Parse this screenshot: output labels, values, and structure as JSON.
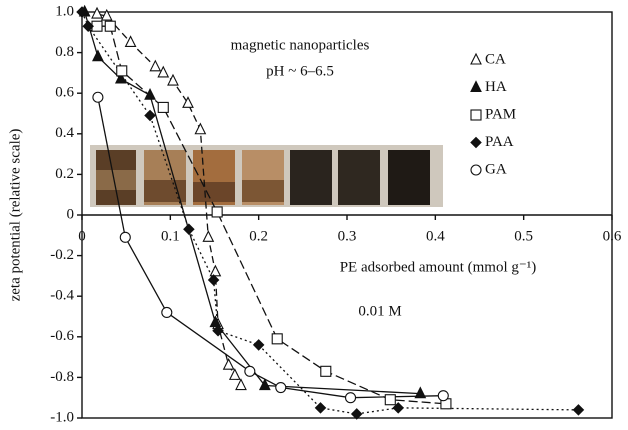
{
  "chart_data": {
    "type": "scatter",
    "ylabel": "zeta potential (relative scale)",
    "xlabel": "PE adsorbed amount (mmol g⁻¹)",
    "annotations": [
      "magnetic nanoparticles",
      "pH ~ 6–6.5",
      "0.01 M"
    ],
    "xlim": [
      0,
      0.6
    ],
    "ylim": [
      -1.0,
      1.0
    ],
    "xticks": [
      0,
      0.1,
      0.2,
      0.3,
      0.4,
      0.5,
      0.6
    ],
    "yticks": [
      {
        "value": 1.0,
        "label": "1.0"
      },
      0.8,
      0.6,
      0.4,
      0.2,
      0,
      -0.2,
      -0.4,
      -0.6,
      -0.8,
      {
        "value": -1.0,
        "label": "-1.0"
      }
    ],
    "series": [
      {
        "name": "CA",
        "marker": "triangle-open",
        "dash": "7 4",
        "color": "#111",
        "x": [
          0.017,
          0.028,
          0.055,
          0.083,
          0.092,
          0.103,
          0.12,
          0.134,
          0.143,
          0.151,
          0.154,
          0.166,
          0.173,
          0.18
        ],
        "values": [
          0.99,
          0.98,
          0.85,
          0.73,
          0.7,
          0.66,
          0.55,
          0.42,
          -0.11,
          -0.28,
          -0.54,
          -0.74,
          -0.79,
          -0.84
        ]
      },
      {
        "name": "HA",
        "marker": "triangle-filled",
        "dash": "",
        "color": "#111",
        "x": [
          0.003,
          0.018,
          0.044,
          0.077,
          0.151,
          0.207,
          0.383
        ],
        "values": [
          1.0,
          0.78,
          0.67,
          0.59,
          -0.53,
          -0.84,
          -0.88
        ]
      },
      {
        "name": "PAM",
        "marker": "square-open",
        "dash": "9 4",
        "color": "#111",
        "x": [
          0.017,
          0.032,
          0.045,
          0.092,
          0.153,
          0.221,
          0.276,
          0.349,
          0.412
        ],
        "values": [
          0.93,
          0.93,
          0.71,
          0.53,
          0.015,
          -0.61,
          -0.77,
          -0.91,
          -0.93
        ]
      },
      {
        "name": "PAA",
        "marker": "diamond-filled",
        "dash": "2 3",
        "color": "#111",
        "x": [
          0,
          0.007,
          0.077,
          0.121,
          0.149,
          0.154,
          0.2,
          0.27,
          0.311,
          0.358,
          0.562
        ],
        "values": [
          1.0,
          0.93,
          0.49,
          -0.07,
          -0.32,
          -0.57,
          -0.64,
          -0.95,
          -0.98,
          -0.95,
          -0.96
        ]
      },
      {
        "name": "GA",
        "marker": "circle-open",
        "dash": "",
        "color": "#111",
        "x": [
          0.018,
          0.049,
          0.096,
          0.19,
          0.225,
          0.304,
          0.409
        ],
        "values": [
          0.58,
          -0.11,
          -0.48,
          -0.77,
          -0.85,
          -0.9,
          -0.89
        ]
      }
    ]
  }
}
